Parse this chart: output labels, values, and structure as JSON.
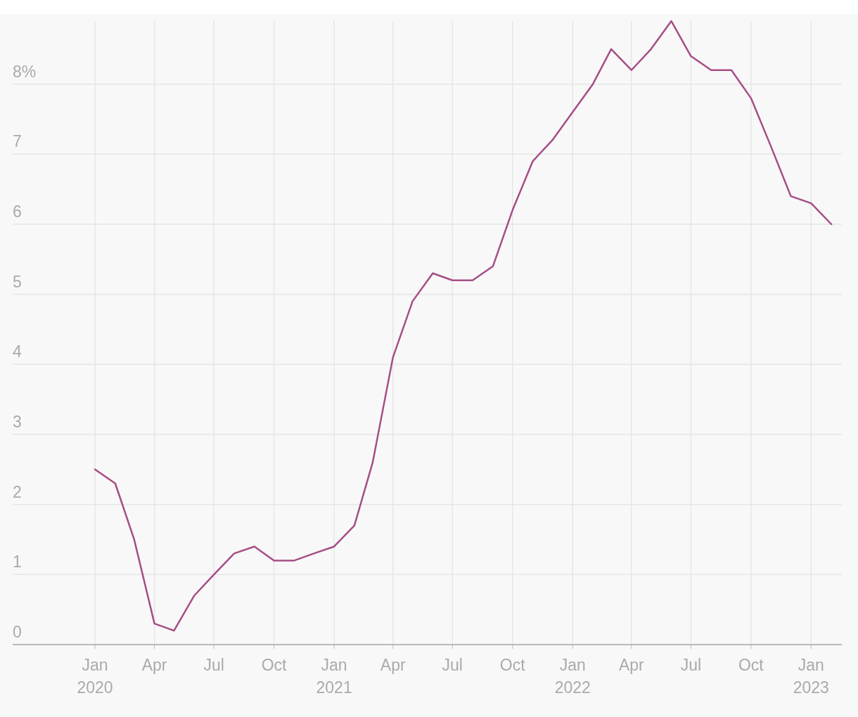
{
  "chart_data": {
    "type": "line",
    "x": [
      "2020-01",
      "2020-02",
      "2020-03",
      "2020-04",
      "2020-05",
      "2020-06",
      "2020-07",
      "2020-08",
      "2020-09",
      "2020-10",
      "2020-11",
      "2020-12",
      "2021-01",
      "2021-02",
      "2021-03",
      "2021-04",
      "2021-05",
      "2021-06",
      "2021-07",
      "2021-08",
      "2021-09",
      "2021-10",
      "2021-11",
      "2021-12",
      "2022-01",
      "2022-02",
      "2022-03",
      "2022-04",
      "2022-05",
      "2022-06",
      "2022-07",
      "2022-08",
      "2022-09",
      "2022-10",
      "2022-11",
      "2022-12",
      "2023-01",
      "2023-02"
    ],
    "series": [
      {
        "color": "#a64d86",
        "values": [
          2.5,
          2.3,
          1.5,
          0.3,
          0.2,
          0.7,
          1.0,
          1.3,
          1.4,
          1.2,
          1.2,
          1.3,
          1.4,
          1.7,
          2.6,
          4.1,
          4.9,
          5.3,
          5.2,
          5.2,
          5.4,
          6.2,
          6.9,
          7.2,
          7.6,
          8.0,
          8.5,
          8.2,
          8.5,
          8.9,
          8.4,
          8.2,
          8.2,
          7.8,
          7.1,
          6.4,
          6.3,
          6.0
        ]
      }
    ],
    "xlim": [
      "2019-08-28",
      "2023-02-17"
    ],
    "xticks": [
      {
        "value": "2020-01",
        "label": "Jan 2020"
      },
      {
        "value": "2020-04",
        "label": "Apr"
      },
      {
        "value": "2020-07",
        "label": "Jul"
      },
      {
        "value": "2020-10",
        "label": "Oct"
      },
      {
        "value": "2021-01",
        "label": "Jan 2021"
      },
      {
        "value": "2021-04",
        "label": "Apr"
      },
      {
        "value": "2021-07",
        "label": "Jul"
      },
      {
        "value": "2021-10",
        "label": "Oct"
      },
      {
        "value": "2022-01",
        "label": "Jan 2022"
      },
      {
        "value": "2022-04",
        "label": "Apr"
      },
      {
        "value": "2022-07",
        "label": "Jul"
      },
      {
        "value": "2022-10",
        "label": "Oct"
      },
      {
        "value": "2023-01",
        "label": "Jan 2023"
      }
    ],
    "ylim": [
      0,
      9
    ],
    "yticks": [
      0,
      1,
      2,
      3,
      4,
      5,
      6,
      7,
      {
        "value": 8,
        "label": "8%"
      }
    ],
    "grid": true,
    "marker": "none",
    "line_style": "solid"
  }
}
